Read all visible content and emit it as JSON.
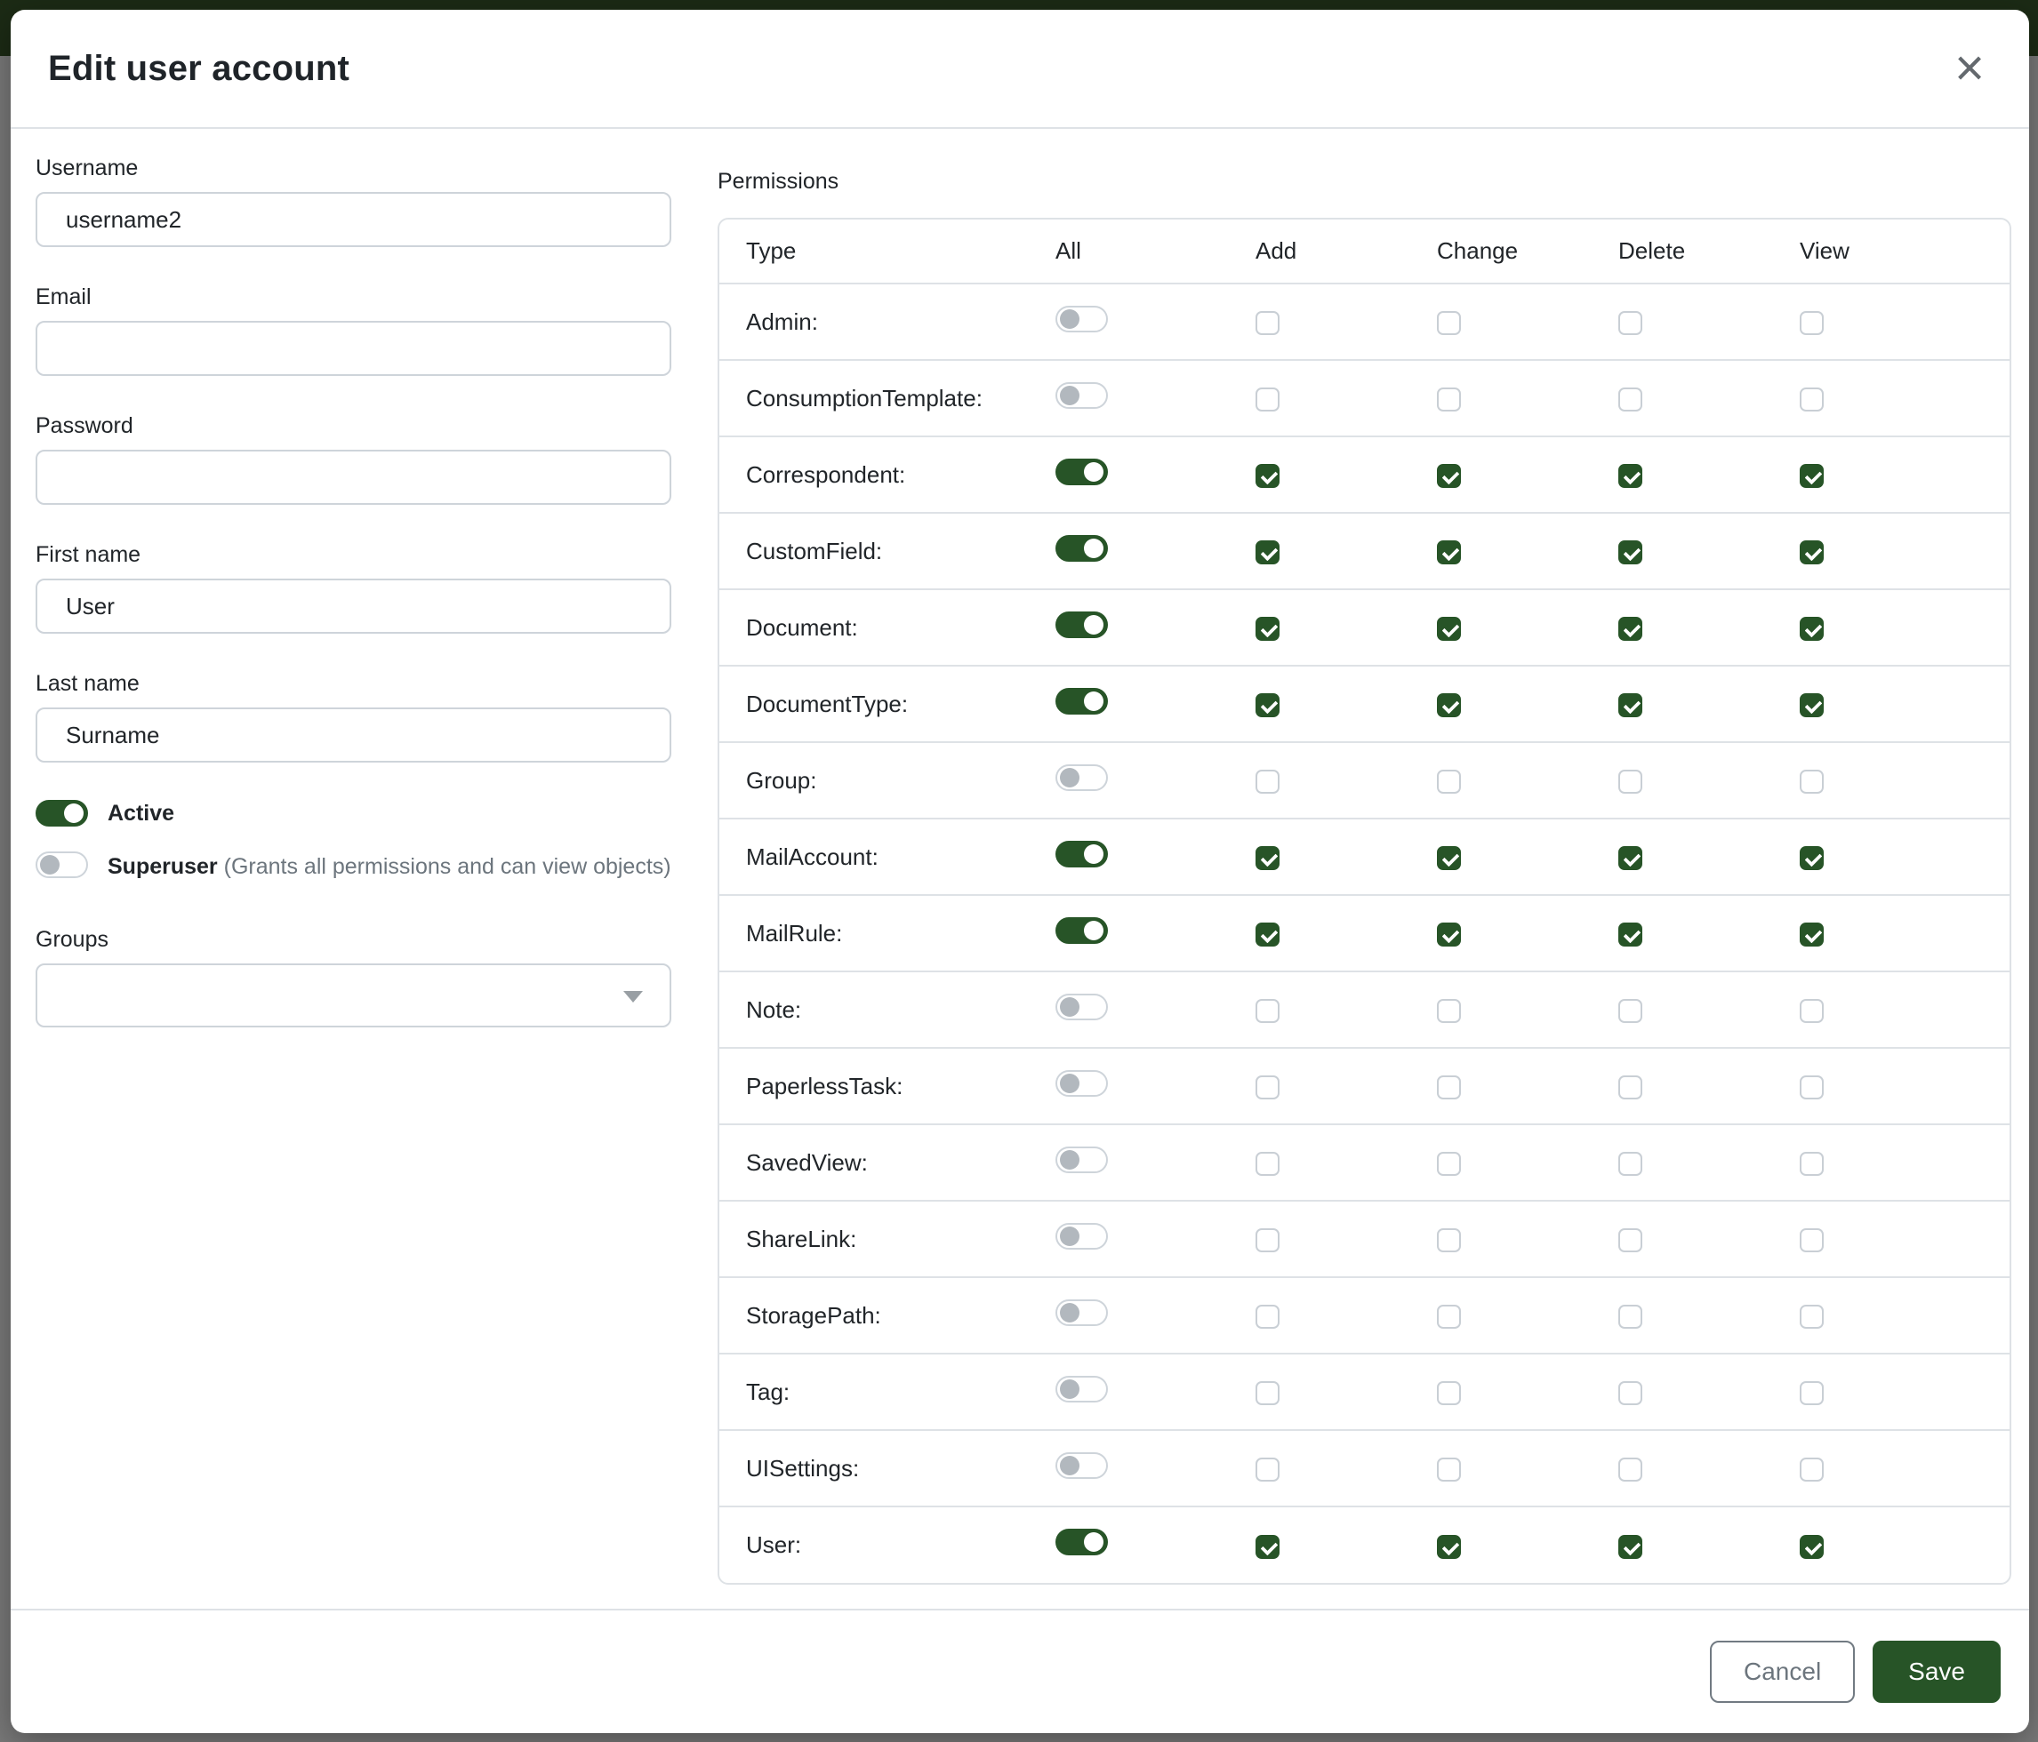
{
  "modal": {
    "title": "Edit user account",
    "close_icon": "×"
  },
  "form": {
    "username": {
      "label": "Username",
      "value": "username2"
    },
    "email": {
      "label": "Email",
      "value": ""
    },
    "password": {
      "label": "Password",
      "value": ""
    },
    "first_name": {
      "label": "First name",
      "value": "User"
    },
    "last_name": {
      "label": "Last name",
      "value": "Surname"
    },
    "active": {
      "label": "Active",
      "enabled": true
    },
    "superuser": {
      "label": "Superuser",
      "hint": "(Grants all permissions and can view objects)",
      "enabled": false
    },
    "groups": {
      "label": "Groups",
      "value": ""
    }
  },
  "permissions": {
    "label": "Permissions",
    "columns": [
      "Type",
      "All",
      "Add",
      "Change",
      "Delete",
      "View"
    ],
    "rows": [
      {
        "label": "Admin:",
        "enabled": false
      },
      {
        "label": "ConsumptionTemplate:",
        "enabled": false
      },
      {
        "label": "Correspondent:",
        "enabled": true
      },
      {
        "label": "CustomField:",
        "enabled": true
      },
      {
        "label": "Document:",
        "enabled": true
      },
      {
        "label": "DocumentType:",
        "enabled": true
      },
      {
        "label": "Group:",
        "enabled": false
      },
      {
        "label": "MailAccount:",
        "enabled": true
      },
      {
        "label": "MailRule:",
        "enabled": true
      },
      {
        "label": "Note:",
        "enabled": false
      },
      {
        "label": "PaperlessTask:",
        "enabled": false
      },
      {
        "label": "SavedView:",
        "enabled": false
      },
      {
        "label": "ShareLink:",
        "enabled": false
      },
      {
        "label": "StoragePath:",
        "enabled": false
      },
      {
        "label": "Tag:",
        "enabled": false
      },
      {
        "label": "UISettings:",
        "enabled": false
      },
      {
        "label": "User:",
        "enabled": true
      }
    ]
  },
  "footer": {
    "cancel_label": "Cancel",
    "save_label": "Save"
  },
  "colors": {
    "primary_green": "#275427",
    "dimmed_navbar_green": "#1c2b15",
    "backdrop_gray": "#7a7a7a",
    "border_gray": "#ced4da",
    "table_border_gray": "#dee2e6",
    "muted_text": "#6c757d"
  }
}
